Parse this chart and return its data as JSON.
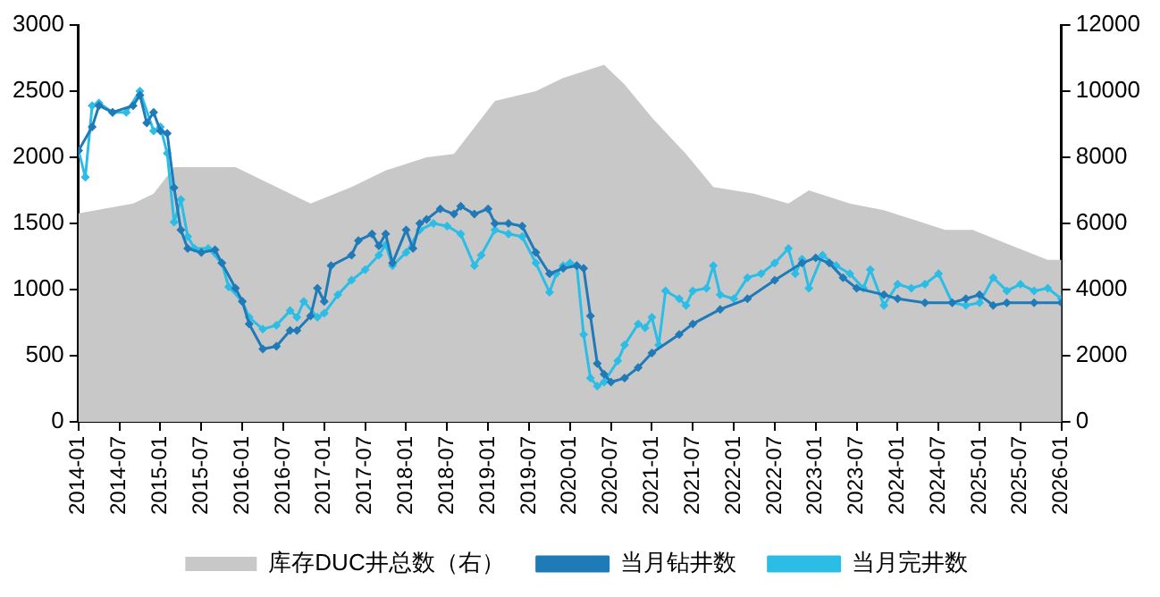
{
  "chart_data": {
    "type": "line",
    "xlim": [
      "2014-01",
      "2026-01"
    ],
    "xticks": [
      "2014-01",
      "2014-07",
      "2015-01",
      "2015-07",
      "2016-01",
      "2016-07",
      "2017-01",
      "2017-07",
      "2018-01",
      "2018-07",
      "2019-01",
      "2019-07",
      "2020-01",
      "2020-07",
      "2021-01",
      "2021-07",
      "2022-01",
      "2022-07",
      "2023-01",
      "2023-07",
      "2024-01",
      "2024-07",
      "2025-01",
      "2025-07",
      "2026-01"
    ],
    "ylim": [
      0,
      3000
    ],
    "yticks": [
      0,
      500,
      1000,
      1500,
      2000,
      2500,
      3000
    ],
    "y2lim": [
      0,
      12000
    ],
    "y2ticks": [
      0,
      2000,
      4000,
      6000,
      8000,
      10000,
      12000
    ],
    "grid": false,
    "legend": "bottom",
    "line_style": "solid",
    "series": [
      {
        "name": "库存DUC井总数（右）",
        "type": "area",
        "axis": "y2",
        "color": "#c8c8c8",
        "marker": "none",
        "x": [
          "2014-01",
          "2014-09",
          "2014-12",
          "2015-03",
          "2015-12",
          "2016-11",
          "2017-05",
          "2017-10",
          "2018-04",
          "2018-08",
          "2019-02",
          "2019-08",
          "2019-12",
          "2020-06",
          "2020-09",
          "2021-01",
          "2021-06",
          "2021-10",
          "2022-04",
          "2022-09",
          "2022-12",
          "2023-06",
          "2023-11",
          "2024-08",
          "2024-12",
          "2025-06",
          "2025-11",
          "2026-01"
        ],
        "values": [
          6300,
          6600,
          6900,
          7700,
          7700,
          6600,
          7100,
          7600,
          8000,
          8100,
          9700,
          10000,
          10400,
          10800,
          10200,
          9200,
          8100,
          7100,
          6900,
          6600,
          7000,
          6600,
          6400,
          5800,
          5800,
          5300,
          4900,
          4900
        ]
      },
      {
        "name": "当月钻井数",
        "type": "line",
        "color": "#1f7ab8",
        "marker": "diamond",
        "x": [
          "2014-01",
          "2014-03",
          "2014-04",
          "2014-06",
          "2014-09",
          "2014-10",
          "2014-11",
          "2014-12",
          "2015-01",
          "2015-02",
          "2015-03",
          "2015-04",
          "2015-05",
          "2015-07",
          "2015-09",
          "2015-10",
          "2015-12",
          "2016-01",
          "2016-02",
          "2016-04",
          "2016-06",
          "2016-08",
          "2016-09",
          "2016-11",
          "2016-12",
          "2017-01",
          "2017-02",
          "2017-05",
          "2017-06",
          "2017-08",
          "2017-09",
          "2017-10",
          "2017-11",
          "2018-01",
          "2018-02",
          "2018-03",
          "2018-04",
          "2018-06",
          "2018-08",
          "2018-09",
          "2018-11",
          "2019-01",
          "2019-02",
          "2019-04",
          "2019-06",
          "2019-08",
          "2019-10",
          "2019-12",
          "2020-02",
          "2020-03",
          "2020-04",
          "2020-05",
          "2020-06",
          "2020-07",
          "2020-09",
          "2020-11",
          "2021-01",
          "2021-05",
          "2021-07",
          "2021-11",
          "2022-03",
          "2022-07",
          "2022-11",
          "2023-01",
          "2023-03",
          "2023-05",
          "2023-07",
          "2023-11",
          "2024-01",
          "2024-05",
          "2024-09",
          "2024-11",
          "2025-01",
          "2025-03",
          "2025-05",
          "2025-09",
          "2026-01"
        ],
        "values": [
          2050,
          2230,
          2390,
          2340,
          2390,
          2470,
          2260,
          2340,
          2200,
          2180,
          1770,
          1450,
          1310,
          1280,
          1300,
          1200,
          1010,
          910,
          740,
          550,
          570,
          690,
          690,
          800,
          1010,
          910,
          1180,
          1260,
          1370,
          1420,
          1330,
          1420,
          1200,
          1450,
          1310,
          1500,
          1530,
          1610,
          1570,
          1630,
          1570,
          1610,
          1500,
          1500,
          1480,
          1280,
          1120,
          1160,
          1180,
          1160,
          800,
          440,
          360,
          300,
          330,
          410,
          520,
          660,
          740,
          850,
          930,
          1070,
          1200,
          1240,
          1200,
          1090,
          1010,
          960,
          930,
          900,
          900,
          930,
          960,
          880,
          900,
          900,
          900
        ]
      },
      {
        "name": "当月完井数",
        "type": "line",
        "color": "#2bbde6",
        "marker": "diamond",
        "x": [
          "2014-01",
          "2014-02",
          "2014-03",
          "2014-04",
          "2014-06",
          "2014-08",
          "2014-10",
          "2014-12",
          "2015-01",
          "2015-02",
          "2015-03",
          "2015-04",
          "2015-05",
          "2015-06",
          "2015-08",
          "2015-10",
          "2015-11",
          "2016-01",
          "2016-02",
          "2016-04",
          "2016-06",
          "2016-08",
          "2016-09",
          "2016-10",
          "2016-12",
          "2017-01",
          "2017-03",
          "2017-05",
          "2017-07",
          "2017-09",
          "2017-10",
          "2017-11",
          "2018-01",
          "2018-03",
          "2018-05",
          "2018-07",
          "2018-09",
          "2018-11",
          "2018-12",
          "2019-02",
          "2019-04",
          "2019-06",
          "2019-08",
          "2019-10",
          "2019-11",
          "2019-12",
          "2020-01",
          "2020-02",
          "2020-03",
          "2020-04",
          "2020-05",
          "2020-06",
          "2020-08",
          "2020-09",
          "2020-11",
          "2020-12",
          "2021-01",
          "2021-02",
          "2021-03",
          "2021-05",
          "2021-06",
          "2021-07",
          "2021-09",
          "2021-10",
          "2021-11",
          "2022-01",
          "2022-03",
          "2022-05",
          "2022-07",
          "2022-09",
          "2022-10",
          "2022-11",
          "2022-12",
          "2023-02",
          "2023-04",
          "2023-06",
          "2023-08",
          "2023-09",
          "2023-11",
          "2024-01",
          "2024-03",
          "2024-05",
          "2024-07",
          "2024-09",
          "2024-11",
          "2025-01",
          "2025-03",
          "2025-05",
          "2025-07",
          "2025-09",
          "2025-11",
          "2026-01"
        ],
        "values": [
          2050,
          1850,
          2390,
          2410,
          2340,
          2340,
          2500,
          2200,
          2230,
          2030,
          1510,
          1680,
          1400,
          1310,
          1310,
          1200,
          1020,
          910,
          790,
          700,
          730,
          840,
          790,
          910,
          790,
          820,
          960,
          1070,
          1150,
          1260,
          1340,
          1180,
          1280,
          1450,
          1500,
          1480,
          1420,
          1180,
          1260,
          1450,
          1420,
          1400,
          1200,
          980,
          1120,
          1180,
          1200,
          1180,
          660,
          330,
          270,
          300,
          460,
          580,
          740,
          710,
          790,
          580,
          990,
          930,
          880,
          990,
          1010,
          1180,
          960,
          930,
          1090,
          1120,
          1200,
          1310,
          1120,
          1230,
          1010,
          1260,
          1180,
          1120,
          1010,
          1150,
          880,
          1040,
          1010,
          1040,
          1120,
          900,
          880,
          900,
          1090,
          990,
          1040,
          990,
          1010,
          930
        ]
      }
    ]
  }
}
